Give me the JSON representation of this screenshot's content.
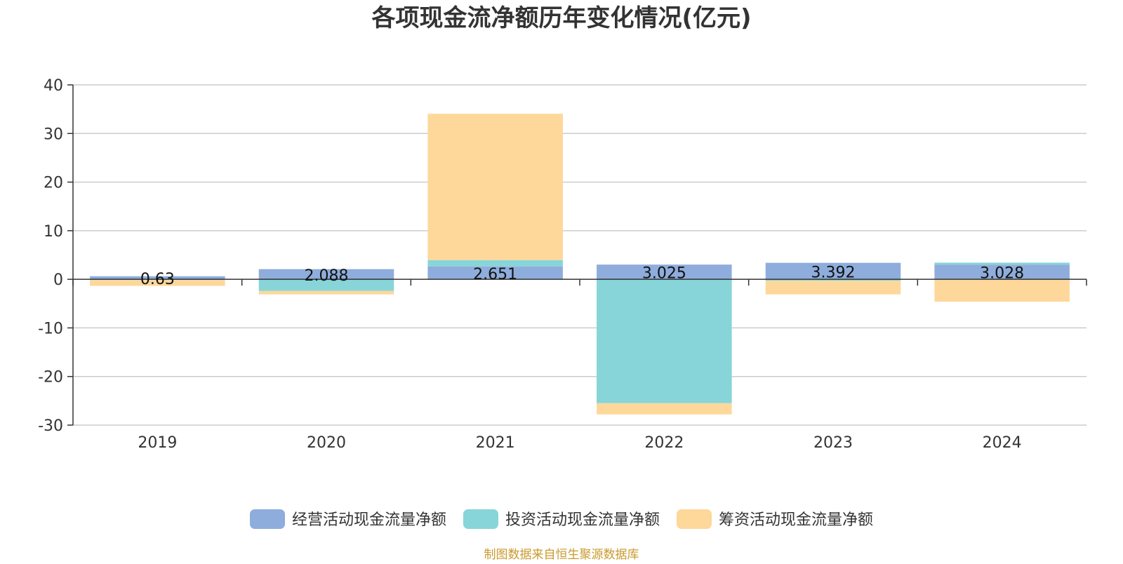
{
  "chart_data": {
    "type": "bar",
    "stacked": true,
    "title": "各项现金流净额历年变化情况(亿元)",
    "categories": [
      "2019",
      "2020",
      "2021",
      "2022",
      "2023",
      "2024"
    ],
    "series": [
      {
        "name": "经营活动现金流量净额",
        "color": "#8eaddc",
        "values": [
          0.63,
          2.088,
          2.651,
          3.025,
          3.392,
          3.028
        ],
        "data_labels": [
          "0.63",
          "2.088",
          "2.651",
          "3.025",
          "3.392",
          "3.028"
        ]
      },
      {
        "name": "投资活动现金流量净额",
        "color": "#87d5d8",
        "values": [
          -0.15,
          -2.4,
          1.3,
          -25.5,
          -0.3,
          0.4
        ]
      },
      {
        "name": "筹资活动现金流量净额",
        "color": "#fdd89a",
        "values": [
          -1.2,
          -0.7,
          30.1,
          -2.3,
          -2.8,
          -4.6
        ]
      }
    ],
    "ylim": [
      -30,
      40
    ],
    "yticks": [
      40,
      30,
      20,
      10,
      0,
      -10,
      -20,
      -30
    ],
    "grid": true,
    "legend": "bottom-center",
    "xlabel": "",
    "ylabel": ""
  },
  "footer": {
    "source": "制图数据来自恒生聚源数据库",
    "color": "#c99a2e"
  }
}
